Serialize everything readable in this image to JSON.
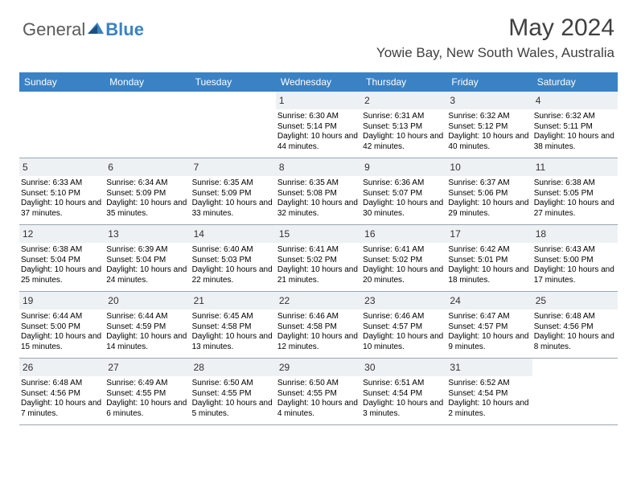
{
  "brand": {
    "general": "General",
    "blue": "Blue"
  },
  "title": "May 2024",
  "location": "Yowie Bay, New South Wales, Australia",
  "colors": {
    "header_bg": "#3b82c4",
    "daynum_bg": "#eef1f4",
    "text": "#000000",
    "title_text": "#404040",
    "grid_border": "#9aa7b3"
  },
  "fonts": {
    "title_size": 30,
    "location_size": 17,
    "dayhead_size": 12,
    "daynum_size": 12,
    "info_size": 10
  },
  "layout": {
    "cols": 7,
    "rows": 5,
    "cell_min_height": 82
  },
  "day_names": [
    "Sunday",
    "Monday",
    "Tuesday",
    "Wednesday",
    "Thursday",
    "Friday",
    "Saturday"
  ],
  "weeks": [
    [
      null,
      null,
      null,
      {
        "n": "1",
        "sr": "6:30 AM",
        "ss": "5:14 PM",
        "dl": "10 hours and 44 minutes."
      },
      {
        "n": "2",
        "sr": "6:31 AM",
        "ss": "5:13 PM",
        "dl": "10 hours and 42 minutes."
      },
      {
        "n": "3",
        "sr": "6:32 AM",
        "ss": "5:12 PM",
        "dl": "10 hours and 40 minutes."
      },
      {
        "n": "4",
        "sr": "6:32 AM",
        "ss": "5:11 PM",
        "dl": "10 hours and 38 minutes."
      }
    ],
    [
      {
        "n": "5",
        "sr": "6:33 AM",
        "ss": "5:10 PM",
        "dl": "10 hours and 37 minutes."
      },
      {
        "n": "6",
        "sr": "6:34 AM",
        "ss": "5:09 PM",
        "dl": "10 hours and 35 minutes."
      },
      {
        "n": "7",
        "sr": "6:35 AM",
        "ss": "5:09 PM",
        "dl": "10 hours and 33 minutes."
      },
      {
        "n": "8",
        "sr": "6:35 AM",
        "ss": "5:08 PM",
        "dl": "10 hours and 32 minutes."
      },
      {
        "n": "9",
        "sr": "6:36 AM",
        "ss": "5:07 PM",
        "dl": "10 hours and 30 minutes."
      },
      {
        "n": "10",
        "sr": "6:37 AM",
        "ss": "5:06 PM",
        "dl": "10 hours and 29 minutes."
      },
      {
        "n": "11",
        "sr": "6:38 AM",
        "ss": "5:05 PM",
        "dl": "10 hours and 27 minutes."
      }
    ],
    [
      {
        "n": "12",
        "sr": "6:38 AM",
        "ss": "5:04 PM",
        "dl": "10 hours and 25 minutes."
      },
      {
        "n": "13",
        "sr": "6:39 AM",
        "ss": "5:04 PM",
        "dl": "10 hours and 24 minutes."
      },
      {
        "n": "14",
        "sr": "6:40 AM",
        "ss": "5:03 PM",
        "dl": "10 hours and 22 minutes."
      },
      {
        "n": "15",
        "sr": "6:41 AM",
        "ss": "5:02 PM",
        "dl": "10 hours and 21 minutes."
      },
      {
        "n": "16",
        "sr": "6:41 AM",
        "ss": "5:02 PM",
        "dl": "10 hours and 20 minutes."
      },
      {
        "n": "17",
        "sr": "6:42 AM",
        "ss": "5:01 PM",
        "dl": "10 hours and 18 minutes."
      },
      {
        "n": "18",
        "sr": "6:43 AM",
        "ss": "5:00 PM",
        "dl": "10 hours and 17 minutes."
      }
    ],
    [
      {
        "n": "19",
        "sr": "6:44 AM",
        "ss": "5:00 PM",
        "dl": "10 hours and 15 minutes."
      },
      {
        "n": "20",
        "sr": "6:44 AM",
        "ss": "4:59 PM",
        "dl": "10 hours and 14 minutes."
      },
      {
        "n": "21",
        "sr": "6:45 AM",
        "ss": "4:58 PM",
        "dl": "10 hours and 13 minutes."
      },
      {
        "n": "22",
        "sr": "6:46 AM",
        "ss": "4:58 PM",
        "dl": "10 hours and 12 minutes."
      },
      {
        "n": "23",
        "sr": "6:46 AM",
        "ss": "4:57 PM",
        "dl": "10 hours and 10 minutes."
      },
      {
        "n": "24",
        "sr": "6:47 AM",
        "ss": "4:57 PM",
        "dl": "10 hours and 9 minutes."
      },
      {
        "n": "25",
        "sr": "6:48 AM",
        "ss": "4:56 PM",
        "dl": "10 hours and 8 minutes."
      }
    ],
    [
      {
        "n": "26",
        "sr": "6:48 AM",
        "ss": "4:56 PM",
        "dl": "10 hours and 7 minutes."
      },
      {
        "n": "27",
        "sr": "6:49 AM",
        "ss": "4:55 PM",
        "dl": "10 hours and 6 minutes."
      },
      {
        "n": "28",
        "sr": "6:50 AM",
        "ss": "4:55 PM",
        "dl": "10 hours and 5 minutes."
      },
      {
        "n": "29",
        "sr": "6:50 AM",
        "ss": "4:55 PM",
        "dl": "10 hours and 4 minutes."
      },
      {
        "n": "30",
        "sr": "6:51 AM",
        "ss": "4:54 PM",
        "dl": "10 hours and 3 minutes."
      },
      {
        "n": "31",
        "sr": "6:52 AM",
        "ss": "4:54 PM",
        "dl": "10 hours and 2 minutes."
      },
      null
    ]
  ],
  "labels": {
    "sunrise": "Sunrise:",
    "sunset": "Sunset:",
    "daylight": "Daylight:"
  }
}
